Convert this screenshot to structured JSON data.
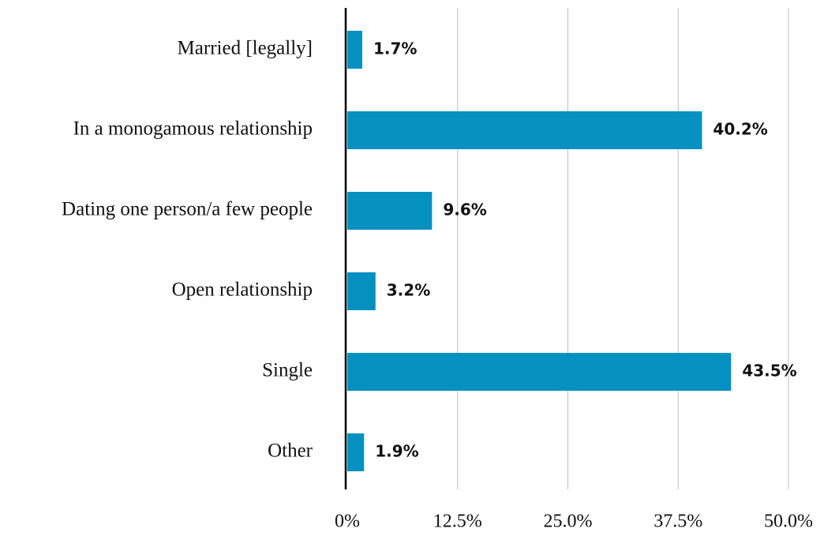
{
  "chart_data": {
    "type": "hbar",
    "categories": [
      "Married [legally]",
      "In a monogamous relationship",
      "Dating one person/a few people",
      "Open relationship",
      "Single",
      "Other"
    ],
    "values": [
      1.7,
      40.2,
      9.6,
      3.2,
      43.5,
      1.9
    ],
    "value_labels": [
      "1.7%",
      "40.2%",
      "9.6%",
      "3.2%",
      "43.5%",
      "1.9%"
    ],
    "color": "#0590c2",
    "xlim": [
      0,
      50
    ],
    "xticks": [
      {
        "value": 0,
        "label": "0%"
      },
      {
        "value": 12.5,
        "label": "12.5%"
      },
      {
        "value": 25,
        "label": "25.0%"
      },
      {
        "value": 37.5,
        "label": "37.5%"
      },
      {
        "value": 50,
        "label": "50.0%"
      }
    ],
    "grid": true
  }
}
